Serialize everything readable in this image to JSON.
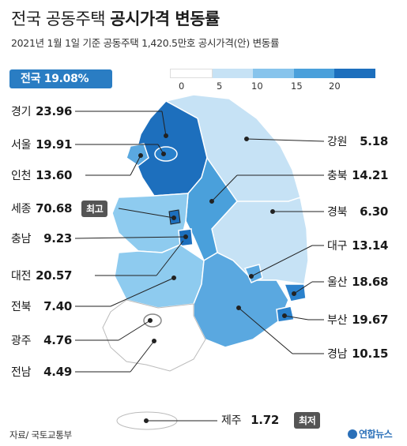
{
  "header": {
    "title_plain": "전국 공동주택 ",
    "title_bold": "공시가격 변동률",
    "subtitle": "2021년 1월 1일 기준 공동주택 1,420.5만호 공시가격(안) 변동률"
  },
  "national": {
    "label": "전국",
    "value": "19.08%"
  },
  "legend": {
    "ticks": [
      "0",
      "5",
      "10",
      "15",
      "20"
    ],
    "colors": [
      "#ffffff",
      "#c6e2f5",
      "#87c4ec",
      "#4aa0db",
      "#1d6fbd"
    ]
  },
  "regions": [
    {
      "name": "경기",
      "value": "23.96",
      "color": "#1d6fbd"
    },
    {
      "name": "서울",
      "value": "19.91",
      "color": "#2a81cc"
    },
    {
      "name": "인천",
      "value": "13.60",
      "color": "#5aa8e0"
    },
    {
      "name": "세종",
      "value": "70.68",
      "color": "#1d6fbd"
    },
    {
      "name": "충남",
      "value": "9.23",
      "color": "#8ecbef"
    },
    {
      "name": "대전",
      "value": "20.57",
      "color": "#1d6fbd"
    },
    {
      "name": "전북",
      "value": "7.40",
      "color": "#8ecbef"
    },
    {
      "name": "광주",
      "value": "4.76",
      "color": "#ffffff"
    },
    {
      "name": "전남",
      "value": "4.49",
      "color": "#ffffff"
    },
    {
      "name": "강원",
      "value": "5.18",
      "color": "#8ecbef"
    },
    {
      "name": "충북",
      "value": "14.21",
      "color": "#4aa0db"
    },
    {
      "name": "경북",
      "value": "6.30",
      "color": "#8ecbef"
    },
    {
      "name": "대구",
      "value": "13.14",
      "color": "#5aa8e0"
    },
    {
      "name": "울산",
      "value": "18.68",
      "color": "#2a81cc"
    },
    {
      "name": "부산",
      "value": "19.67",
      "color": "#2a81cc"
    },
    {
      "name": "경남",
      "value": "10.15",
      "color": "#5aa8e0"
    },
    {
      "name": "제주",
      "value": "1.72",
      "color": "#ffffff"
    }
  ],
  "badges": {
    "highest": "최고",
    "lowest": "최저"
  },
  "footer": {
    "source": "자료/ 국토교통부",
    "logo": "연합뉴스"
  }
}
